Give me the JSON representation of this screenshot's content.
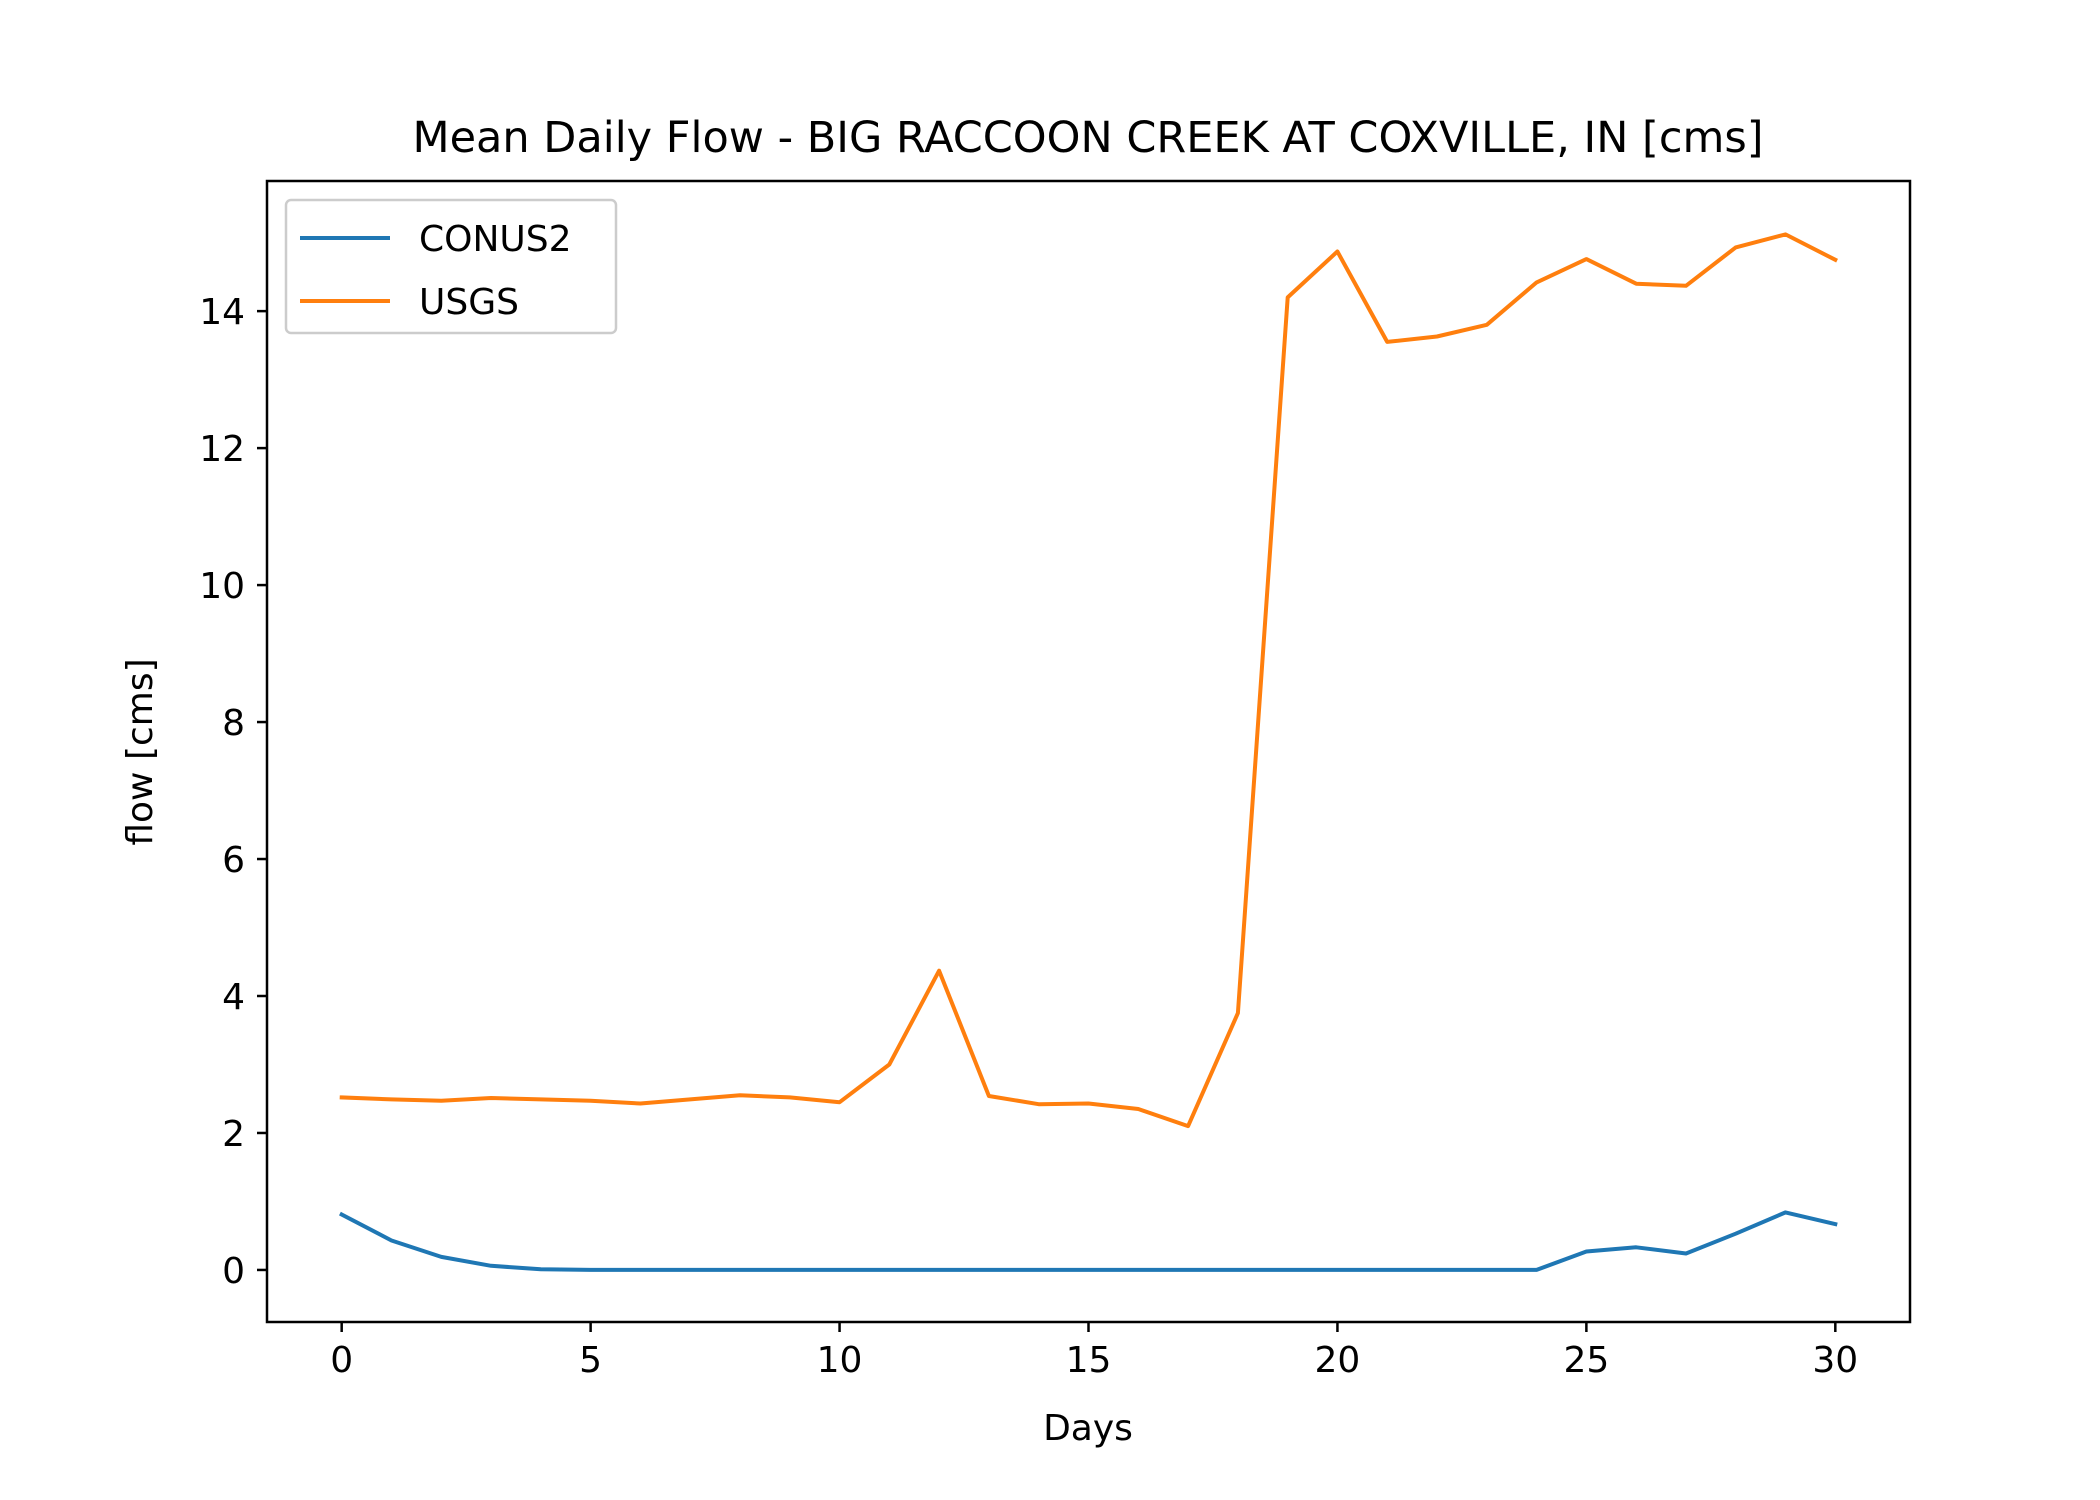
{
  "chart_data": {
    "type": "line",
    "title": "Mean Daily Flow - BIG RACCOON CREEK AT COXVILLE, IN [cms]",
    "xlabel": "Days",
    "ylabel": "flow [cms]",
    "xlim": [
      -1.5,
      31.5
    ],
    "ylim": [
      -0.76,
      15.9
    ],
    "xticks": [
      0,
      5,
      10,
      15,
      20,
      25,
      30
    ],
    "yticks": [
      0,
      2,
      4,
      6,
      8,
      10,
      12,
      14
    ],
    "grid": false,
    "legend_position": "top-left",
    "x": [
      0,
      1,
      2,
      3,
      4,
      5,
      6,
      7,
      8,
      9,
      10,
      11,
      12,
      13,
      14,
      15,
      16,
      17,
      18,
      19,
      20,
      21,
      22,
      23,
      24,
      25,
      26,
      27,
      28,
      29,
      30
    ],
    "series": [
      {
        "name": "CONUS2",
        "color": "#1f77b4",
        "values": [
          0.81,
          0.43,
          0.19,
          0.06,
          0.01,
          0.0,
          0.0,
          0.0,
          0.0,
          0.0,
          0.0,
          0.0,
          0.0,
          0.0,
          0.0,
          0.0,
          0.0,
          0.0,
          0.0,
          0.0,
          0.0,
          0.0,
          0.0,
          0.0,
          0.0,
          0.27,
          0.33,
          0.24,
          0.53,
          0.84,
          0.67
        ]
      },
      {
        "name": "USGS",
        "color": "#ff7f0e",
        "values": [
          2.52,
          2.49,
          2.47,
          2.51,
          2.49,
          2.47,
          2.43,
          2.49,
          2.55,
          2.52,
          2.45,
          3.0,
          4.37,
          2.54,
          2.42,
          2.43,
          2.35,
          2.1,
          3.75,
          14.2,
          14.87,
          13.55,
          13.63,
          13.8,
          14.42,
          14.76,
          14.4,
          14.37,
          14.93,
          15.12,
          14.75
        ]
      }
    ]
  }
}
